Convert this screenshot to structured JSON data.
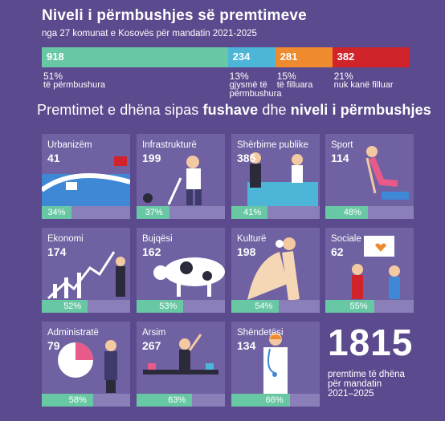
{
  "header": {
    "title": "Niveli i përmbushjes së premtimeve",
    "subtitle": "nga 27 komunat e Kosovës për mandatin 2021-2025"
  },
  "summary": {
    "segments": [
      {
        "value": "918",
        "pct": "51%",
        "desc": "të përmbushura",
        "desc2": "",
        "color": "#69c8a4",
        "count": 918
      },
      {
        "value": "234",
        "pct": "13%",
        "desc": "gjysmë të",
        "desc2": "përmbushura",
        "color": "#4db6d8",
        "count": 234
      },
      {
        "value": "281",
        "pct": "15%",
        "desc": "të filluara",
        "desc2": "",
        "color": "#ef8a2e",
        "count": 281
      },
      {
        "value": "382",
        "pct": "21%",
        "desc": "nuk kanë filluar",
        "desc2": "",
        "color": "#d1232a",
        "count": 382
      }
    ]
  },
  "section": {
    "title_pre": "Premtimet e dhëna sipas ",
    "title_bold1": "fushave",
    "title_mid": " dhe ",
    "title_bold2": "niveli i përmbushjes"
  },
  "chart_data": {
    "type": "bar",
    "categories": [
      "Urbanizëm",
      "Infrastrukturë",
      "Shërbime publike",
      "Sport",
      "Ekonomi",
      "Bujqësi",
      "Kulturë",
      "Sociale",
      "Administratë",
      "Arsim",
      "Shëndetësi"
    ],
    "series": [
      {
        "values": [
          41,
          199,
          385,
          114,
          174,
          162,
          198,
          62,
          79,
          267,
          134
        ]
      },
      {
        "values": [
          34,
          37,
          41,
          48,
          52,
          53,
          54,
          55,
          58,
          63,
          66
        ]
      }
    ]
  },
  "cards": [
    {
      "label": "Urbanizëm",
      "count": "41",
      "pct_label": "34%",
      "pct": 34
    },
    {
      "label": "Infrastrukturë",
      "count": "199",
      "pct_label": "37%",
      "pct": 37
    },
    {
      "label": "Shërbime publike",
      "count": "385",
      "pct_label": "41%",
      "pct": 41
    },
    {
      "label": "Sport",
      "count": "114",
      "pct_label": "48%",
      "pct": 48
    },
    {
      "label": "Ekonomi",
      "count": "174",
      "pct_label": "52%",
      "pct": 52
    },
    {
      "label": "Bujqësi",
      "count": "162",
      "pct_label": "53%",
      "pct": 53
    },
    {
      "label": "Kulturë",
      "count": "198",
      "pct_label": "54%",
      "pct": 54
    },
    {
      "label": "Sociale",
      "count": "62",
      "pct_label": "55%",
      "pct": 55
    },
    {
      "label": "Administratë",
      "count": "79",
      "pct_label": "58%",
      "pct": 58
    },
    {
      "label": "Arsim",
      "count": "267",
      "pct_label": "63%",
      "pct": 63
    },
    {
      "label": "Shëndetësi",
      "count": "134",
      "pct_label": "66%",
      "pct": 66
    }
  ],
  "total": {
    "value": "1815",
    "line1": "premtime të dhëna",
    "line2": "për mandatin",
    "line3": "2021–2025"
  },
  "colors": {
    "background": "#5b4a8d",
    "card": "#6f61a2",
    "fulfilled": "#69c8a4"
  }
}
